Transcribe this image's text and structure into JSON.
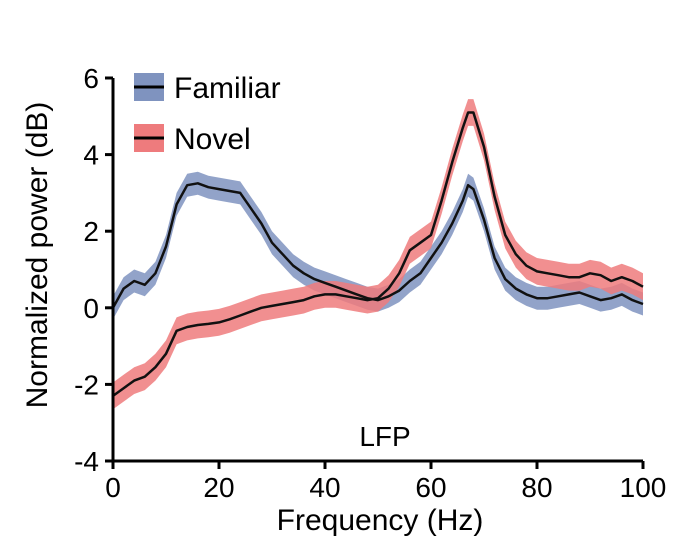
{
  "chart_data": {
    "type": "line",
    "title": "",
    "xlabel": "Frequency (Hz)",
    "ylabel": "Normalized power (dB)",
    "xlim": [
      0,
      100
    ],
    "ylim": [
      -4,
      6
    ],
    "xticks": [
      "0",
      "20",
      "40",
      "60",
      "80",
      "100"
    ],
    "yticks": [
      "6",
      "4",
      "2",
      "0",
      "-2",
      "-4"
    ],
    "annotation": "LFP",
    "legend_position": "top-left",
    "grid": false,
    "series": [
      {
        "name": "Familiar",
        "line_color": "#111111",
        "band_color": "#7f93bf",
        "x": [
          0,
          2,
          4,
          6,
          8,
          10,
          12,
          14,
          16,
          18,
          20,
          22,
          24,
          26,
          28,
          30,
          32,
          34,
          36,
          38,
          40,
          42,
          44,
          46,
          48,
          50,
          52,
          54,
          56,
          58,
          60,
          62,
          64,
          66,
          67,
          68,
          70,
          72,
          74,
          76,
          78,
          80,
          82,
          84,
          86,
          88,
          90,
          92,
          94,
          96,
          98,
          100
        ],
        "y": [
          0.0,
          0.5,
          0.7,
          0.6,
          0.9,
          1.6,
          2.7,
          3.2,
          3.25,
          3.15,
          3.1,
          3.05,
          3.0,
          2.6,
          2.2,
          1.7,
          1.4,
          1.1,
          0.9,
          0.75,
          0.65,
          0.55,
          0.45,
          0.35,
          0.25,
          0.2,
          0.3,
          0.45,
          0.7,
          0.9,
          1.3,
          1.7,
          2.2,
          2.8,
          3.2,
          3.1,
          2.3,
          1.3,
          0.75,
          0.5,
          0.35,
          0.25,
          0.25,
          0.3,
          0.35,
          0.4,
          0.3,
          0.2,
          0.25,
          0.35,
          0.2,
          0.1
        ],
        "band": 0.3
      },
      {
        "name": "Novel",
        "line_color": "#111111",
        "band_color": "#ee7b7d",
        "x": [
          0,
          2,
          4,
          6,
          8,
          10,
          12,
          14,
          16,
          18,
          20,
          22,
          24,
          26,
          28,
          30,
          32,
          34,
          36,
          38,
          40,
          42,
          44,
          46,
          48,
          50,
          52,
          54,
          56,
          58,
          60,
          62,
          64,
          66,
          67,
          68,
          70,
          72,
          74,
          76,
          78,
          80,
          82,
          84,
          86,
          88,
          90,
          92,
          94,
          96,
          98,
          100
        ],
        "y": [
          -2.3,
          -2.1,
          -1.9,
          -1.8,
          -1.55,
          -1.2,
          -0.6,
          -0.5,
          -0.45,
          -0.42,
          -0.38,
          -0.3,
          -0.2,
          -0.1,
          0.0,
          0.05,
          0.1,
          0.15,
          0.2,
          0.3,
          0.35,
          0.35,
          0.3,
          0.25,
          0.2,
          0.25,
          0.5,
          0.9,
          1.5,
          1.7,
          1.9,
          2.8,
          3.8,
          4.7,
          5.1,
          5.1,
          4.2,
          2.9,
          1.9,
          1.4,
          1.1,
          0.95,
          0.9,
          0.85,
          0.8,
          0.8,
          0.9,
          0.85,
          0.7,
          0.8,
          0.7,
          0.55
        ],
        "band": 0.35
      }
    ]
  }
}
